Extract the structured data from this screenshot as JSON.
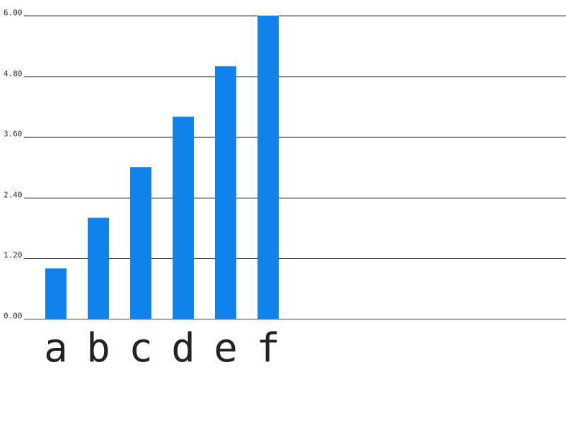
{
  "chart_data": {
    "type": "bar",
    "categories": [
      "a",
      "b",
      "c",
      "d",
      "e",
      "f"
    ],
    "values": [
      1,
      2,
      3,
      4,
      5,
      6
    ],
    "ylim": [
      0,
      6
    ],
    "yticks": [
      "0.00",
      "1.20",
      "2.40",
      "3.60",
      "4.80",
      "6.00"
    ],
    "title": "",
    "xlabel": "",
    "ylabel": "",
    "grid": true,
    "legend": "none",
    "colors": {
      "bar": "#1082eb",
      "grid": "#000000",
      "baseline": "#888888"
    }
  }
}
